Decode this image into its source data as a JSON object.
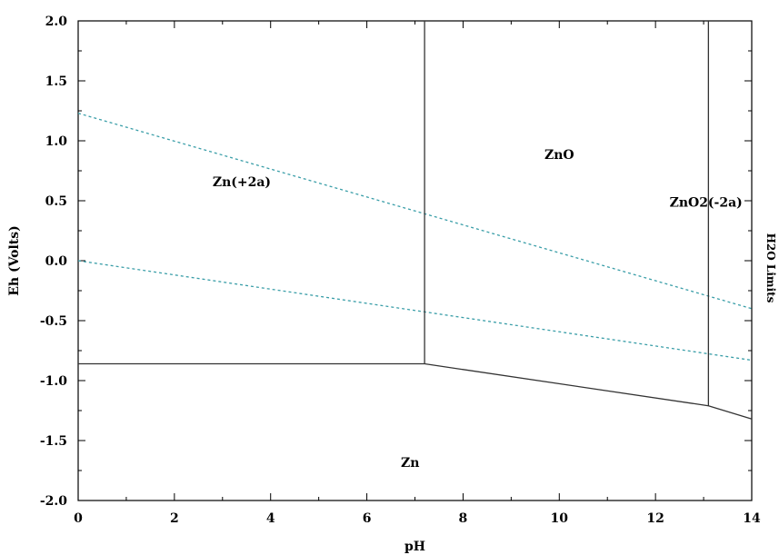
{
  "chart_data": {
    "type": "line",
    "xlabel": "pH",
    "ylabel": "Eh (Volts)",
    "xlim": [
      0,
      14
    ],
    "ylim": [
      -2.0,
      2.0
    ],
    "x_ticks": [
      0,
      2,
      4,
      6,
      8,
      10,
      12,
      14
    ],
    "x_tick_labels": [
      "0",
      "2",
      "4",
      "6",
      "8",
      "10",
      "12",
      "14"
    ],
    "y_ticks": [
      2.0,
      1.5,
      1.0,
      0.5,
      0.0,
      -0.5,
      -1.0,
      -1.5,
      -2.0
    ],
    "y_tick_labels": [
      "2.0",
      "1.5",
      "1.0",
      "0.5",
      "0.0",
      "-0.5",
      "-1.0",
      "-1.5",
      "-2.0"
    ],
    "grid": false,
    "boundaries": [
      {
        "x": [
          7.2,
          7.2
        ],
        "y": [
          -0.86,
          2.0
        ]
      },
      {
        "x": [
          13.1,
          13.1
        ],
        "y": [
          -1.21,
          2.0
        ]
      },
      {
        "x": [
          0,
          7.2,
          13.1,
          14
        ],
        "y": [
          -0.86,
          -0.86,
          -1.21,
          -1.32
        ]
      }
    ],
    "water_limits": [
      {
        "x": [
          0,
          14
        ],
        "y": [
          1.23,
          -0.4
        ]
      },
      {
        "x": [
          0,
          14
        ],
        "y": [
          0.0,
          -0.83
        ]
      }
    ],
    "water_color": "#3a9ea8",
    "legend": {
      "label": "H2O Limits",
      "placement": "right"
    },
    "regions": [
      {
        "label": "Zn(+2a)",
        "x": 3.4,
        "y": 0.62
      },
      {
        "label": "ZnO",
        "x": 10.0,
        "y": 0.85
      },
      {
        "label": "ZnO2(-2a)",
        "x": 13.05,
        "y": 0.45
      },
      {
        "label": "Zn",
        "x": 6.9,
        "y": -1.72
      }
    ]
  }
}
